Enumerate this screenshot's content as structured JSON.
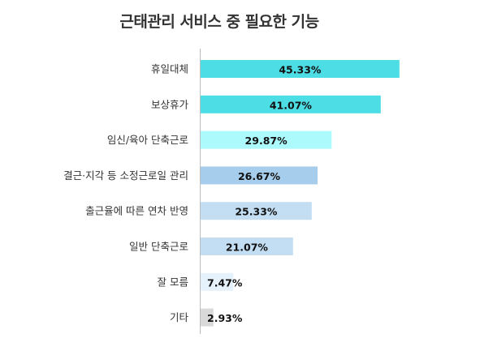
{
  "chart_data": {
    "type": "bar",
    "orientation": "horizontal",
    "title": "근태관리 서비스 중 필요한 기능",
    "categories": [
      "휴일대체",
      "보상휴가",
      "임신/육아 단축근로",
      "결근·지각 등 소정근로일 관리",
      "출근율에 따른 연차 반영",
      "일반 단축근로",
      "잘 모름",
      "기타"
    ],
    "values": [
      45.33,
      41.07,
      29.87,
      26.67,
      25.33,
      21.07,
      7.47,
      2.93
    ],
    "value_labels": [
      "45.33%",
      "41.07%",
      "29.87%",
      "26.67%",
      "25.33%",
      "21.07%",
      "7.47%",
      "2.93%"
    ],
    "colors": [
      "#4ddde4",
      "#4ddde4",
      "#adfafc",
      "#a7cdec",
      "#c3def3",
      "#c3def3",
      "#e6f2fb",
      "#d9d9d9"
    ],
    "grid": false,
    "legend": "none"
  }
}
